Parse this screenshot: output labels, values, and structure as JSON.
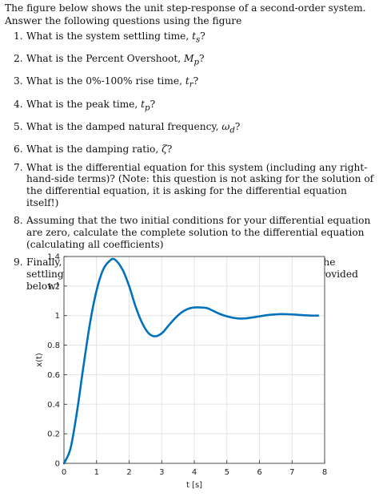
{
  "intro": "The figure below shows the unit step-response of a second-order system. Answer the following questions using the figure",
  "questions": [
    {
      "num": "1.",
      "text": "What is the system settling time, ",
      "sym": "t",
      "sub": "s",
      "end": "?"
    },
    {
      "num": "2.",
      "text": "What is the Percent Overshoot, ",
      "sym": "M",
      "sub": "p",
      "end": "?"
    },
    {
      "num": "3.",
      "text": "What is the 0%-100% rise time, ",
      "sym": "t",
      "sub": "r",
      "end": "?"
    },
    {
      "num": "4.",
      "text": "What is the peak time, ",
      "sym": "t",
      "sub": "p",
      "end": "?"
    },
    {
      "num": "5.",
      "text": "What is the damped natural frequency, ",
      "sym": "ω",
      "sub": "d",
      "end": "?"
    },
    {
      "num": "6.",
      "text": "What is the damping ratio, ",
      "sym": "ζ",
      "sub": "",
      "end": "?"
    },
    {
      "num": "7.",
      "text": "What is the differential equation for this system (including any right-hand-side terms)? (Note: this question is not asking for the solution of the differential equation, it is asking for the differential equation itself!)",
      "sym": "",
      "sub": "",
      "end": ""
    },
    {
      "num": "8.",
      "text": "Assuming that the two initial conditions for your differential equation are zero, calculate the complete solution to the differential equation (calculating all coefficients)",
      "sym": "",
      "sub": "",
      "end": ""
    },
    {
      "num": "9.",
      "text": "Finally, plot the solution of your differential equation up to the settling time. Comment on how well it matches the figure provided below!",
      "sym": "",
      "sub": "",
      "end": ""
    }
  ],
  "chart_data": {
    "type": "line",
    "title": "",
    "xlabel": "t [s]",
    "ylabel": "x(t)",
    "xlim": [
      0,
      8
    ],
    "ylim": [
      0,
      1.4
    ],
    "xticks": [
      0,
      1,
      2,
      3,
      4,
      5,
      6,
      7,
      8
    ],
    "yticks": [
      0,
      0.2,
      0.4,
      0.6,
      0.8,
      1,
      1.2,
      1.4
    ],
    "grid": true,
    "line_color": "#0072BD",
    "series": [
      {
        "name": "",
        "x": [
          0,
          0.2,
          0.4,
          0.6,
          0.8,
          1.0,
          1.2,
          1.4,
          1.56,
          1.8,
          2.0,
          2.2,
          2.4,
          2.6,
          2.8,
          3.0,
          3.2,
          3.4,
          3.6,
          3.8,
          4.0,
          4.2,
          4.4,
          4.6,
          4.8,
          5.0,
          5.2,
          5.4,
          5.6,
          5.8,
          6.0,
          6.2,
          6.4,
          6.6,
          6.8,
          7.0,
          7.2,
          7.4,
          7.6,
          7.8
        ],
        "y": [
          0,
          0.1,
          0.35,
          0.66,
          0.95,
          1.17,
          1.31,
          1.37,
          1.38,
          1.31,
          1.2,
          1.06,
          0.95,
          0.88,
          0.86,
          0.88,
          0.93,
          0.98,
          1.02,
          1.045,
          1.055,
          1.055,
          1.05,
          1.03,
          1.01,
          0.995,
          0.985,
          0.98,
          0.982,
          0.988,
          0.995,
          1.002,
          1.007,
          1.01,
          1.01,
          1.008,
          1.005,
          1.002,
          1.0,
          1.0
        ]
      }
    ]
  }
}
